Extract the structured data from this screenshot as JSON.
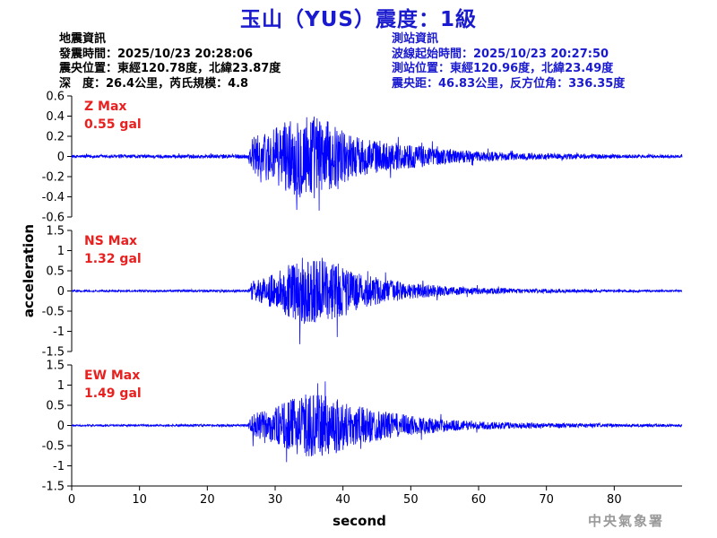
{
  "title": "玉山（YUS）震度：1級",
  "quake_info": {
    "heading": "地震資訊",
    "origin_time": "發震時間：2025/10/23 20:28:06",
    "epicenter": "震央位置：東經120.78度，北緯23.87度",
    "depth_magnitude": "深　度：26.4公里，芮氏規模：4.8"
  },
  "station_info": {
    "heading": "測站資訊",
    "wave_start": "波線起始時間：2025/10/23 20:27:50",
    "location": "測站位置：東經120.96度，北緯23.49度",
    "distance": "震央距：46.83公里，反方位角：336.35度"
  },
  "watermark": "中央氣象署",
  "chart_data": [
    {
      "type": "line",
      "component": "Z",
      "max_label": "Z Max",
      "max_value_label": "0.55 gal",
      "peak": 0.55,
      "ylim": [
        -0.6,
        0.6
      ],
      "yticks": [
        -0.6,
        -0.4,
        -0.2,
        0,
        0.2,
        0.4,
        0.6
      ],
      "ytick_labels": [
        "-0.6",
        "-0.4",
        "-0.2",
        "0",
        "0.2",
        "0.4",
        "0.6"
      ],
      "envelope": [
        [
          0,
          0.015
        ],
        [
          26,
          0.02
        ],
        [
          26.6,
          0.2
        ],
        [
          28,
          0.22
        ],
        [
          30,
          0.28
        ],
        [
          33,
          0.4
        ],
        [
          35,
          0.45
        ],
        [
          37,
          0.38
        ],
        [
          39,
          0.3
        ],
        [
          42,
          0.2
        ],
        [
          46,
          0.15
        ],
        [
          50,
          0.12
        ],
        [
          55,
          0.08
        ],
        [
          60,
          0.05
        ],
        [
          65,
          0.04
        ],
        [
          70,
          0.03
        ],
        [
          80,
          0.02
        ],
        [
          90,
          0.015
        ]
      ],
      "color": "#0000ff"
    },
    {
      "type": "line",
      "component": "NS",
      "max_label": "NS Max",
      "max_value_label": "1.32 gal",
      "peak": 1.32,
      "ylim": [
        -1.5,
        1.5
      ],
      "yticks": [
        -1.5,
        -1,
        -0.5,
        0,
        0.5,
        1,
        1.5
      ],
      "ytick_labels": [
        "-1.5",
        "-1",
        "-0.5",
        "0",
        "0.5",
        "1",
        "1.5"
      ],
      "envelope": [
        [
          0,
          0.02
        ],
        [
          26,
          0.03
        ],
        [
          26.6,
          0.25
        ],
        [
          28,
          0.3
        ],
        [
          30,
          0.45
        ],
        [
          33,
          0.75
        ],
        [
          35,
          0.9
        ],
        [
          37,
          0.75
        ],
        [
          39,
          0.7
        ],
        [
          42,
          0.45
        ],
        [
          46,
          0.3
        ],
        [
          50,
          0.2
        ],
        [
          55,
          0.12
        ],
        [
          60,
          0.08
        ],
        [
          70,
          0.05
        ],
        [
          80,
          0.03
        ],
        [
          90,
          0.02
        ]
      ],
      "color": "#0000ff"
    },
    {
      "type": "line",
      "component": "EW",
      "max_label": "EW Max",
      "max_value_label": "1.49 gal",
      "peak": 1.49,
      "ylim": [
        -1.5,
        1.5
      ],
      "yticks": [
        -1.5,
        -1,
        -0.5,
        0,
        0.5,
        1,
        1.5
      ],
      "ytick_labels": [
        "-1.5",
        "-1",
        "-0.5",
        "0",
        "0.5",
        "1",
        "1.5"
      ],
      "envelope": [
        [
          0,
          0.02
        ],
        [
          26,
          0.03
        ],
        [
          26.6,
          0.3
        ],
        [
          28,
          0.35
        ],
        [
          30,
          0.45
        ],
        [
          33,
          0.7
        ],
        [
          35,
          0.8
        ],
        [
          37,
          0.75
        ],
        [
          39,
          0.7
        ],
        [
          42,
          0.5
        ],
        [
          46,
          0.35
        ],
        [
          50,
          0.25
        ],
        [
          55,
          0.15
        ],
        [
          60,
          0.1
        ],
        [
          70,
          0.06
        ],
        [
          80,
          0.04
        ],
        [
          90,
          0.03
        ]
      ],
      "color": "#0000ff"
    }
  ],
  "x_axis": {
    "xlabel": "second",
    "xlim": [
      0,
      90
    ],
    "xticks": [
      0,
      10,
      20,
      30,
      40,
      50,
      60,
      70,
      80
    ],
    "xtick_labels": [
      "0",
      "10",
      "20",
      "30",
      "40",
      "50",
      "60",
      "70",
      "80"
    ]
  },
  "y_axis": {
    "ylabel": "acceleration"
  }
}
